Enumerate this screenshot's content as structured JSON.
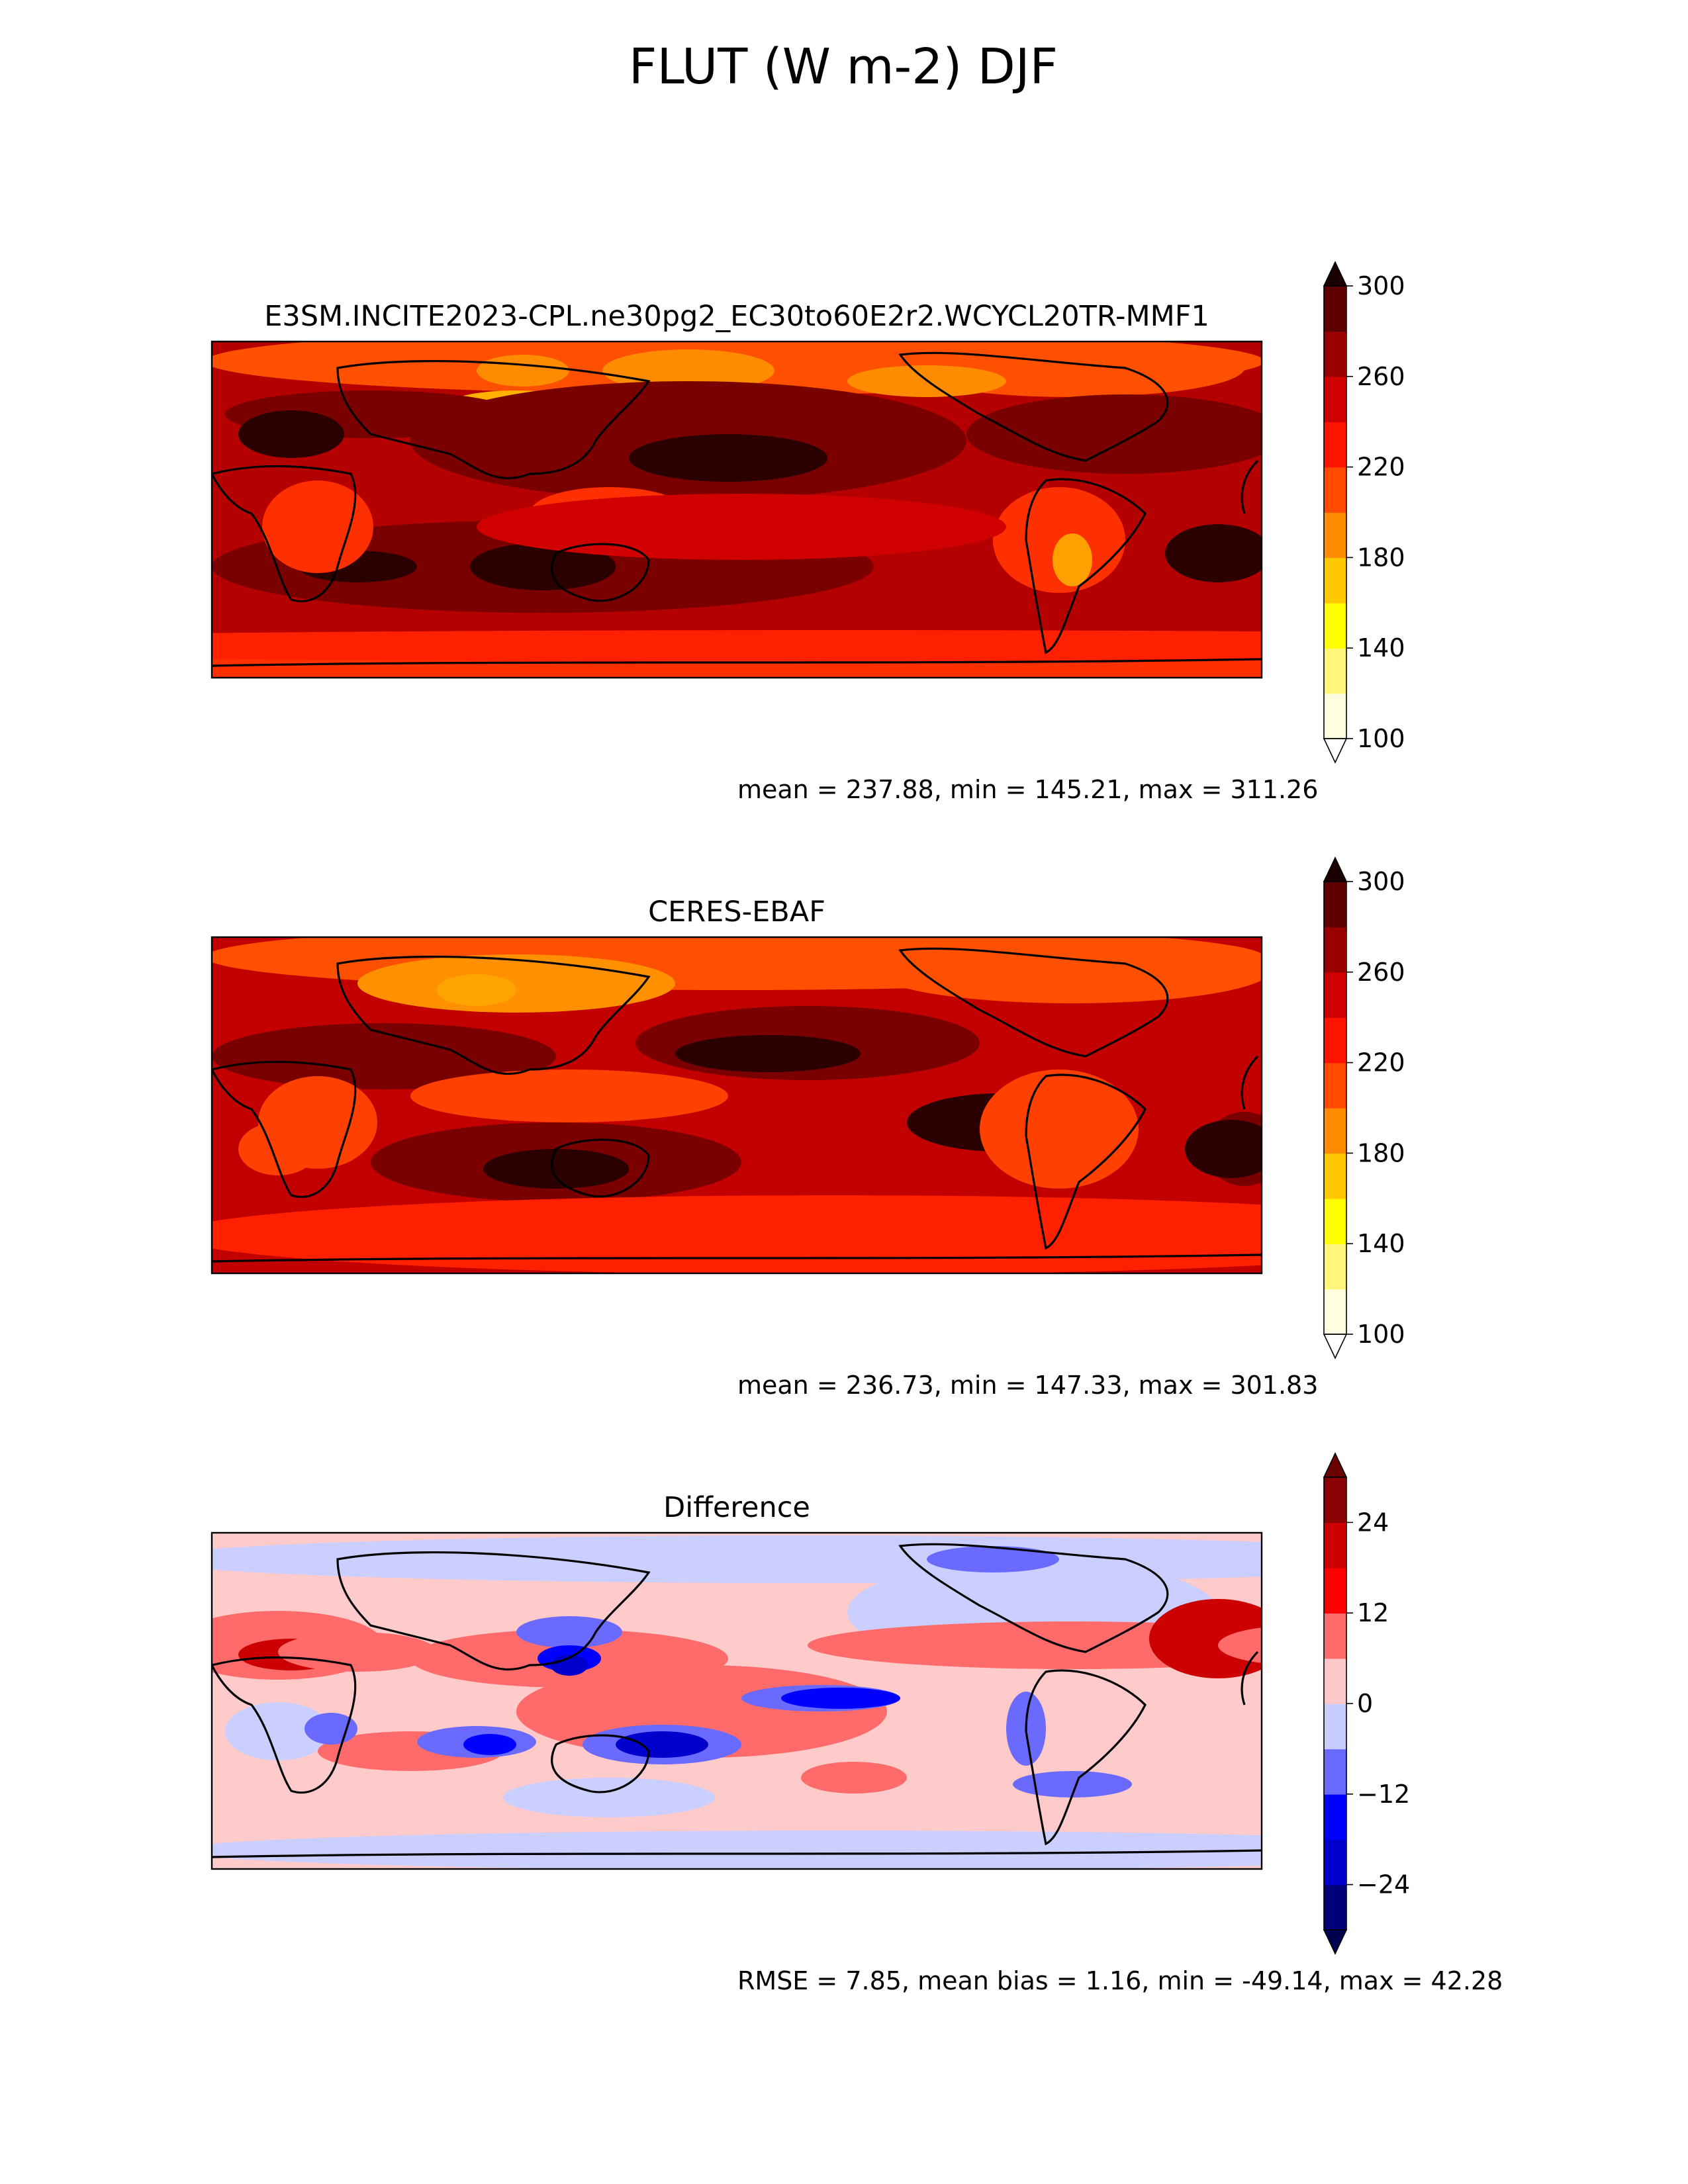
{
  "figure": {
    "title": "FLUT (W m-2) DJF"
  },
  "chart_data": [
    {
      "type": "heatmap",
      "panel": "test",
      "title": "E3SM.INCITE2023-CPL.ne30pg2_EC30to60E2r2.WCYCL20TR-MMF1",
      "stats": "mean = 237.88, min = 145.21, max = 311.26",
      "colorbar": {
        "levels": [
          100,
          120,
          140,
          160,
          180,
          200,
          220,
          240,
          260,
          280,
          300
        ],
        "colors": [
          "#fffde0",
          "#fff67a",
          "#ffff00",
          "#ffc800",
          "#ff8c00",
          "#ff4a00",
          "#ff1400",
          "#d00000",
          "#9a0000",
          "#5e0000"
        ],
        "under_color": "#ffffff",
        "over_color": "#1a0000",
        "ticks": [
          "100",
          "140",
          "180",
          "220",
          "260",
          "300"
        ],
        "extend": "both"
      },
      "field": {
        "region": "global",
        "lat_range": [
          -90,
          90
        ],
        "lon_range": [
          0,
          360
        ],
        "min": 145.21,
        "max": 311.26,
        "mean": 237.88
      }
    },
    {
      "type": "heatmap",
      "panel": "reference",
      "title": "CERES-EBAF",
      "stats": "mean = 236.73, min = 147.33, max = 301.83",
      "colorbar": {
        "levels": [
          100,
          120,
          140,
          160,
          180,
          200,
          220,
          240,
          260,
          280,
          300
        ],
        "colors": [
          "#fffde0",
          "#fff67a",
          "#ffff00",
          "#ffc800",
          "#ff8c00",
          "#ff4a00",
          "#ff1400",
          "#d00000",
          "#9a0000",
          "#5e0000"
        ],
        "under_color": "#ffffff",
        "over_color": "#1a0000",
        "ticks": [
          "100",
          "140",
          "180",
          "220",
          "260",
          "300"
        ],
        "extend": "both"
      },
      "field": {
        "region": "global",
        "lat_range": [
          -90,
          90
        ],
        "lon_range": [
          0,
          360
        ],
        "min": 147.33,
        "max": 301.83,
        "mean": 236.73
      }
    },
    {
      "type": "heatmap",
      "panel": "difference",
      "title": "Difference",
      "stats": "RMSE = 7.85, mean bias = 1.16, min = -49.14, max = 42.28",
      "colorbar": {
        "levels": [
          -30,
          -24,
          -18,
          -12,
          -6,
          0,
          6,
          12,
          18,
          24,
          30
        ],
        "colors": [
          "#00007a",
          "#0000cc",
          "#0000ff",
          "#6a6aff",
          "#c8cdff",
          "#ffc8c8",
          "#ff6a6a",
          "#ff0000",
          "#cc0000",
          "#8b0000"
        ],
        "under_color": "#000050",
        "over_color": "#6a0000",
        "ticks": [
          "−24",
          "−12",
          "0",
          "12",
          "24"
        ],
        "tick_values": [
          -24,
          -12,
          0,
          12,
          24
        ],
        "extend": "both"
      },
      "field": {
        "region": "global",
        "lat_range": [
          -90,
          90
        ],
        "lon_range": [
          0,
          360
        ],
        "min": -49.14,
        "max": 42.28,
        "mean": 1.16
      }
    }
  ]
}
